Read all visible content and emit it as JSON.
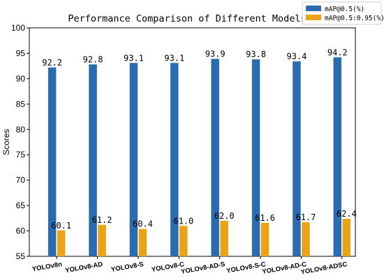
{
  "chart_data": {
    "type": "bar",
    "title": "Performance Comparison of Different Models",
    "xlabel": "",
    "ylabel": "Scores",
    "ylim": [
      55,
      100
    ],
    "yticks": [
      55,
      60,
      65,
      70,
      75,
      80,
      85,
      90,
      95,
      100
    ],
    "grid": false,
    "legend_position": "top-right",
    "categories": [
      "YOLOv8n",
      "YOLOv8-AD",
      "YOLOv8-S",
      "YOLOv8-C",
      "YOLOv8-AD-S",
      "YOLOv8-S-C",
      "YOLOv8-AD-C",
      "YOLOv8-ADSC"
    ],
    "category_labels": [
      "YOLOv8n",
      "YOLOv8-AD",
      "YOLOv8-S",
      "YOLOv8-C",
      "YOLOv8-AD-S",
      "YOLOv8-S-C",
      "YOLOv8-AD-C",
      "YOLOv8-ADSC"
    ],
    "series": [
      {
        "name": "mAP@0.5(%)",
        "color": "#2b6cb0",
        "values": [
          92.2,
          92.8,
          93.1,
          93.1,
          93.9,
          93.8,
          93.4,
          94.2
        ],
        "labels": [
          "92.2",
          "92.8",
          "93.1",
          "93.1",
          "93.9",
          "93.8",
          "93.4",
          "94.2"
        ]
      },
      {
        "name": "mAP@0.5:0.95(%)",
        "color": "#e8a317",
        "values": [
          60.1,
          61.2,
          60.4,
          61.0,
          62.0,
          61.6,
          61.7,
          62.4
        ],
        "labels": [
          "60.1",
          "61.2",
          "60.4",
          "61.0",
          "62.0",
          "61.6",
          "61.7",
          "62.4"
        ]
      }
    ]
  }
}
